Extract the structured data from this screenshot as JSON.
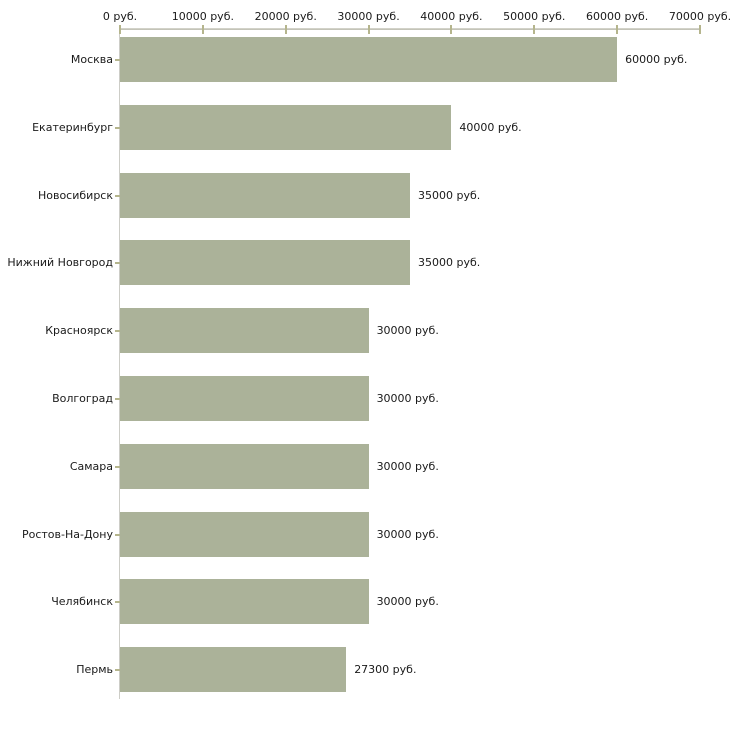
{
  "chart_data": {
    "type": "bar",
    "orientation": "horizontal",
    "title": "",
    "xlabel": "",
    "ylabel": "",
    "categories": [
      "Москва",
      "Екатеринбург",
      "Новосибирск",
      "Нижний Новгород",
      "Красноярск",
      "Волгоград",
      "Самара",
      "Ростов-На-Дону",
      "Челябинск",
      "Пермь"
    ],
    "values": [
      60000,
      40000,
      35000,
      35000,
      30000,
      30000,
      30000,
      30000,
      30000,
      27300
    ],
    "value_labels": [
      "60000 руб.",
      "40000 руб.",
      "35000 руб.",
      "35000 руб.",
      "30000 руб.",
      "30000 руб.",
      "30000 руб.",
      "30000 руб.",
      "30000 руб.",
      "27300 руб."
    ],
    "x_axis": {
      "position": "top",
      "xlim": [
        0,
        70000
      ],
      "ticks": [
        0,
        10000,
        20000,
        30000,
        40000,
        50000,
        60000,
        70000
      ],
      "tick_labels": [
        "0 руб.",
        "10000 руб.",
        "20000 руб.",
        "30000 руб.",
        "40000 руб.",
        "50000 руб.",
        "60000 руб.",
        "70000 руб."
      ]
    },
    "grid": false,
    "legend": "none",
    "colors": {
      "bar_fill": "#abb299",
      "axis_line": "#cdcdc7",
      "tick_mark": "#b5b58d",
      "text": "#1a1a1a"
    }
  }
}
